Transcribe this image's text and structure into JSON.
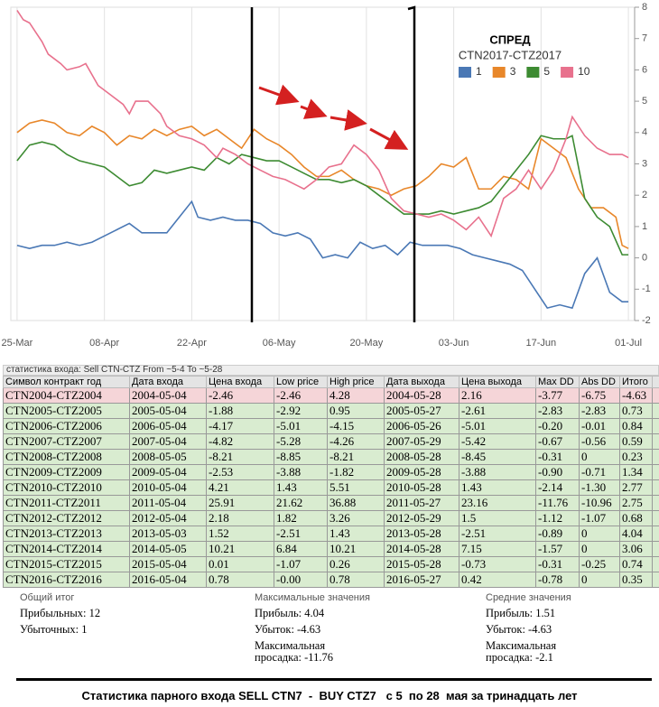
{
  "chart_data": {
    "type": "line",
    "title": "СПРЕД",
    "subtitle": "CTN2017-CTZ2017",
    "legend": "top-right",
    "grid": true,
    "xlim": [
      -1,
      99
    ],
    "xticks": [
      {
        "value": 0,
        "label": "25-Mar"
      },
      {
        "value": 14,
        "label": "08-Apr"
      },
      {
        "value": 28,
        "label": "22-Apr"
      },
      {
        "value": 42,
        "label": "06-May"
      },
      {
        "value": 56,
        "label": "20-May"
      },
      {
        "value": 70,
        "label": "03-Jun"
      },
      {
        "value": 84,
        "label": "17-Jun"
      },
      {
        "value": 98,
        "label": "01-Jul"
      }
    ],
    "ylim": [
      -2,
      8
    ],
    "yticks": [
      -2,
      -1,
      0,
      1,
      2,
      3,
      4,
      5,
      6,
      7,
      8
    ],
    "series": [
      {
        "name": "1",
        "color": "#4a78b5",
        "x": [
          0,
          2,
          4,
          6,
          8,
          10,
          12,
          14,
          16,
          18,
          20,
          22,
          24,
          26,
          28,
          29,
          31,
          33,
          35,
          37,
          39,
          41,
          43,
          45,
          47,
          49,
          51,
          53,
          55,
          57,
          59,
          61,
          63,
          65,
          67,
          69,
          71,
          73,
          75,
          77,
          79,
          81,
          83,
          85,
          87,
          89,
          91,
          93,
          95,
          97,
          98
        ],
        "values": [
          0.4,
          0.3,
          0.4,
          0.4,
          0.5,
          0.4,
          0.5,
          0.7,
          0.9,
          1.1,
          0.8,
          0.8,
          0.8,
          1.3,
          1.8,
          1.3,
          1.2,
          1.3,
          1.2,
          1.2,
          1.1,
          0.8,
          0.7,
          0.8,
          0.6,
          0,
          0.1,
          0,
          0.5,
          0.3,
          0.4,
          0.1,
          0.5,
          0.4,
          0.4,
          0.4,
          0.3,
          0.1,
          0,
          -0.1,
          -0.2,
          -0.4,
          -1.0,
          -1.6,
          -1.5,
          -1.6,
          -0.5,
          0,
          -1.1,
          -1.4,
          -1.4
        ]
      },
      {
        "name": "3",
        "color": "#e8872a",
        "x": [
          0,
          2,
          4,
          6,
          8,
          10,
          12,
          14,
          16,
          18,
          20,
          22,
          24,
          26,
          28,
          30,
          32,
          34,
          36,
          38,
          40,
          42,
          44,
          46,
          48,
          50,
          52,
          54,
          56,
          58,
          60,
          62,
          64,
          66,
          68,
          70,
          72,
          74,
          76,
          78,
          80,
          82,
          84,
          86,
          88,
          90,
          92,
          94,
          96,
          97,
          98
        ],
        "values": [
          4.0,
          4.3,
          4.4,
          4.3,
          4.0,
          3.9,
          4.2,
          4.0,
          3.6,
          3.9,
          3.8,
          4.1,
          3.9,
          4.1,
          4.2,
          3.9,
          4.1,
          3.8,
          3.5,
          4.1,
          3.8,
          3.6,
          3.3,
          2.9,
          2.6,
          2.6,
          2.8,
          2.5,
          2.3,
          2.2,
          2.0,
          2.2,
          2.3,
          2.6,
          3.0,
          2.9,
          3.2,
          2.2,
          2.2,
          2.6,
          2.5,
          2.2,
          3.8,
          3.5,
          3.2,
          2.2,
          1.6,
          1.6,
          1.3,
          0.4,
          0.3
        ]
      },
      {
        "name": "5",
        "color": "#3d8b32",
        "x": [
          0,
          2,
          4,
          6,
          8,
          10,
          12,
          14,
          16,
          18,
          20,
          22,
          24,
          26,
          28,
          30,
          32,
          34,
          36,
          38,
          40,
          42,
          44,
          46,
          48,
          50,
          52,
          54,
          56,
          58,
          60,
          62,
          64,
          66,
          68,
          70,
          72,
          74,
          76,
          78,
          80,
          82,
          84,
          86,
          88,
          89,
          91,
          93,
          95,
          97,
          98
        ],
        "values": [
          3.1,
          3.6,
          3.7,
          3.6,
          3.3,
          3.1,
          3.0,
          2.9,
          2.6,
          2.3,
          2.4,
          2.8,
          2.7,
          2.8,
          2.9,
          2.8,
          3.2,
          3.0,
          3.3,
          3.2,
          3.1,
          3.1,
          2.9,
          2.7,
          2.5,
          2.5,
          2.4,
          2.5,
          2.3,
          2.0,
          1.7,
          1.4,
          1.4,
          1.4,
          1.5,
          1.4,
          1.5,
          1.6,
          1.8,
          2.3,
          2.8,
          3.3,
          3.9,
          3.8,
          3.8,
          3.9,
          1.9,
          1.3,
          1.0,
          0.1,
          0.1
        ]
      },
      {
        "name": "10",
        "color": "#e8718d",
        "x": [
          0,
          1,
          2,
          3,
          4,
          5,
          7,
          8,
          10,
          11,
          13,
          15,
          17,
          18,
          19,
          21,
          23,
          24,
          26,
          28,
          30,
          32,
          33,
          35,
          37,
          39,
          41,
          43,
          45,
          46,
          48,
          50,
          52,
          54,
          56,
          58,
          60,
          62,
          64,
          66,
          68,
          70,
          72,
          74,
          76,
          78,
          80,
          82,
          84,
          86,
          88,
          89,
          91,
          93,
          95,
          97,
          98
        ],
        "values": [
          7.9,
          7.6,
          7.5,
          7.2,
          6.9,
          6.5,
          6.2,
          6.0,
          6.1,
          6.2,
          5.5,
          5.2,
          4.9,
          4.6,
          5.0,
          5.0,
          4.6,
          4.2,
          3.9,
          3.8,
          3.6,
          3.2,
          3.5,
          3.3,
          3.0,
          2.8,
          2.6,
          2.5,
          2.3,
          2.2,
          2.5,
          2.9,
          3.0,
          3.6,
          3.3,
          2.8,
          1.9,
          1.5,
          1.4,
          1.3,
          1.4,
          1.2,
          0.9,
          1.3,
          0.7,
          1.9,
          2.2,
          2.8,
          2.2,
          2.8,
          3.8,
          4.5,
          3.9,
          3.5,
          3.3,
          3.3,
          3.2
        ]
      }
    ]
  },
  "table": {
    "title": "статистика входа: Sell CTN-CTZ From ~5-4 To ~5-28",
    "columns": [
      "Символ контракт год",
      "Дата входа",
      "Цена входа",
      "Low price",
      "High price",
      "Дата выхода",
      "Цена выхода",
      "Max DD",
      "Abs DD",
      "Итого"
    ],
    "rows": [
      [
        "CTN2004-CTZ2004",
        "2004-05-04",
        "-2.46",
        "-2.46",
        "4.28",
        "2004-05-28",
        "2.16",
        "-3.77",
        "-6.75",
        "-4.63"
      ],
      [
        "CTN2005-CTZ2005",
        "2005-05-04",
        "-1.88",
        "-2.92",
        "0.95",
        "2005-05-27",
        "-2.61",
        "-2.83",
        "-2.83",
        "0.73"
      ],
      [
        "CTN2006-CTZ2006",
        "2006-05-04",
        "-4.17",
        "-5.01",
        "-4.15",
        "2006-05-26",
        "-5.01",
        "-0.20",
        "-0.01",
        "0.84"
      ],
      [
        "CTN2007-CTZ2007",
        "2007-05-04",
        "-4.82",
        "-5.28",
        "-4.26",
        "2007-05-29",
        "-5.42",
        "-0.67",
        "-0.56",
        "0.59"
      ],
      [
        "CTN2008-CTZ2008",
        "2008-05-05",
        "-8.21",
        "-8.85",
        "-8.21",
        "2008-05-28",
        "-8.45",
        "-0.31",
        "0",
        "0.23"
      ],
      [
        "CTN2009-CTZ2009",
        "2009-05-04",
        "-2.53",
        "-3.88",
        "-1.82",
        "2009-05-28",
        "-3.88",
        "-0.90",
        "-0.71",
        "1.34"
      ],
      [
        "CTN2010-CTZ2010",
        "2010-05-04",
        "4.21",
        "1.43",
        "5.51",
        "2010-05-28",
        "1.43",
        "-2.14",
        "-1.30",
        "2.77"
      ],
      [
        "CTN2011-CTZ2011",
        "2011-05-04",
        "25.91",
        "21.62",
        "36.88",
        "2011-05-27",
        "23.16",
        "-11.76",
        "-10.96",
        "2.75"
      ],
      [
        "CTN2012-CTZ2012",
        "2012-05-04",
        "2.18",
        "1.82",
        "3.26",
        "2012-05-29",
        "1.5",
        "-1.12",
        "-1.07",
        "0.68"
      ],
      [
        "CTN2013-CTZ2013",
        "2013-05-03",
        "1.52",
        "-2.51",
        "1.43",
        "2013-05-28",
        "-2.51",
        "-0.89",
        "0",
        "4.04"
      ],
      [
        "CTN2014-CTZ2014",
        "2014-05-05",
        "10.21",
        "6.84",
        "10.21",
        "2014-05-28",
        "7.15",
        "-1.57",
        "0",
        "3.06"
      ],
      [
        "CTN2015-CTZ2015",
        "2015-05-04",
        "0.01",
        "-1.07",
        "0.26",
        "2015-05-28",
        "-0.73",
        "-0.31",
        "-0.25",
        "0.74"
      ],
      [
        "CTN2016-CTZ2016",
        "2016-05-04",
        "0.78",
        "-0.00",
        "0.78",
        "2016-05-27",
        "0.42",
        "-0.78",
        "0",
        "0.35"
      ]
    ]
  },
  "summary": [
    {
      "title": "Общий итог",
      "items": [
        "Прибыльных: 12",
        "Убыточных: 1"
      ]
    },
    {
      "title": "Максимальные значения",
      "items": [
        "Прибыль: 4.04",
        "Убыток: -4.63",
        "Максимальная просадка: -11.76"
      ]
    },
    {
      "title": "Средние значения",
      "items": [
        "Прибыль: 1.51",
        "Убыток: -4.63",
        "Максимальная просадка: -2.1"
      ]
    }
  ],
  "caption": "Статистика парного входа SELL CTN7  -  BUY CTZ7   с 5  по 28  мая за тринадцать лет"
}
